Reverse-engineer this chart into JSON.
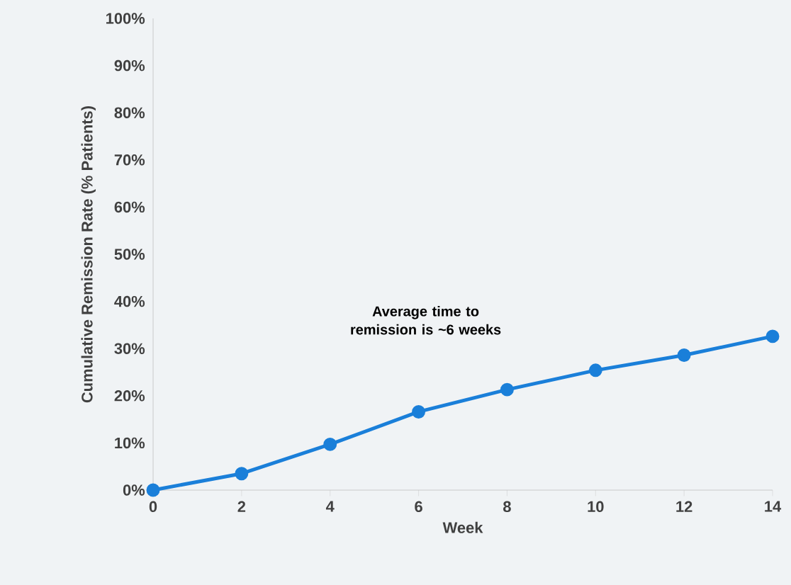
{
  "chart_data": {
    "type": "line",
    "xlabel": "Week",
    "ylabel": "Cumulative Remission Rate (% Patients)",
    "x": [
      0,
      2,
      4,
      6,
      8,
      10,
      12,
      14
    ],
    "series": [
      {
        "color": "#1a7fd9",
        "values": [
          0,
          3.5,
          9.7,
          16.6,
          21.3,
          25.4,
          28.6,
          32.6
        ]
      }
    ],
    "xlim": [
      0,
      14
    ],
    "xticks": [
      0,
      2,
      4,
      6,
      8,
      10,
      12,
      14
    ],
    "ylim": [
      0,
      100
    ],
    "yticks": [
      {
        "value": 0,
        "label": "0%"
      },
      {
        "value": 10,
        "label": "10%"
      },
      {
        "value": 20,
        "label": "20%"
      },
      {
        "value": 30,
        "label": "30%"
      },
      {
        "value": 40,
        "label": "40%"
      },
      {
        "value": 50,
        "label": "50%"
      },
      {
        "value": 60,
        "label": "60%"
      },
      {
        "value": 70,
        "label": "70%"
      },
      {
        "value": 80,
        "label": "80%"
      },
      {
        "value": 90,
        "label": "90%"
      },
      {
        "value": 100,
        "label": "100%"
      }
    ],
    "annotations": [
      "Average time to remission is ~6 weeks"
    ],
    "marker": "circle",
    "line_style": "solid"
  }
}
